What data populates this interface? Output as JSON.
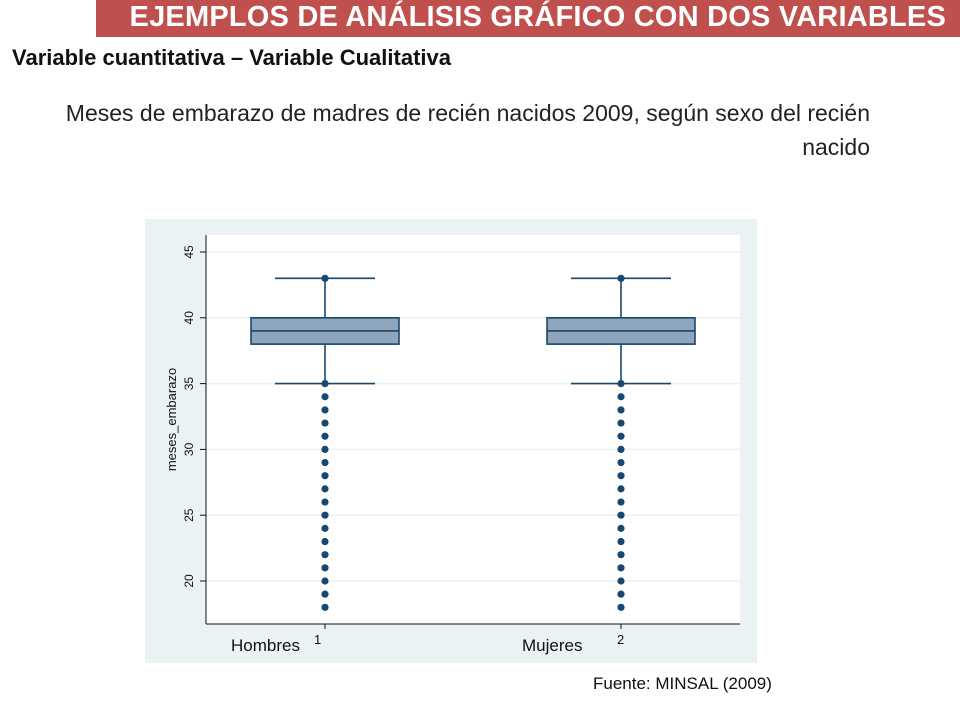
{
  "header": {
    "banner": "EJEMPLOS DE ANÁLISIS GRÁFICO CON DOS VARIABLES",
    "subtitle": "Variable cuantitativa – Variable Cualitativa"
  },
  "footer": {
    "source": "Fuente: MINSAL (2009)"
  },
  "colors": {
    "banner": "#c0504d",
    "box_fill": "#8ea5bd",
    "box_stroke": "#1a476f",
    "plot_bg": "#eaf2f3"
  },
  "chart_data": {
    "type": "box",
    "title": "Meses de embarazo de madres de recién nacidos 2009, según sexo del recién nacido",
    "ylabel": "meses_embarazo",
    "ylim": [
      17,
      46
    ],
    "yticks": [
      20,
      25,
      30,
      35,
      40,
      45
    ],
    "grid": true,
    "categories": [
      "Hombres",
      "Mujeres"
    ],
    "category_codes": [
      "1",
      "2"
    ],
    "boxes": [
      {
        "name": "Hombres",
        "code": "1",
        "q1": 38,
        "median": 39,
        "q3": 40,
        "whisker_low": 35,
        "whisker_high": 43,
        "outliers": [
          18,
          19,
          20,
          21,
          22,
          23,
          24,
          25,
          26,
          27,
          28,
          29,
          30,
          31,
          32,
          33,
          34
        ]
      },
      {
        "name": "Mujeres",
        "code": "2",
        "q1": 38,
        "median": 39,
        "q3": 40,
        "whisker_low": 35,
        "whisker_high": 43,
        "outliers": [
          18,
          19,
          20,
          21,
          22,
          23,
          24,
          25,
          26,
          27,
          28,
          29,
          30,
          31,
          32,
          33,
          34
        ]
      }
    ]
  }
}
